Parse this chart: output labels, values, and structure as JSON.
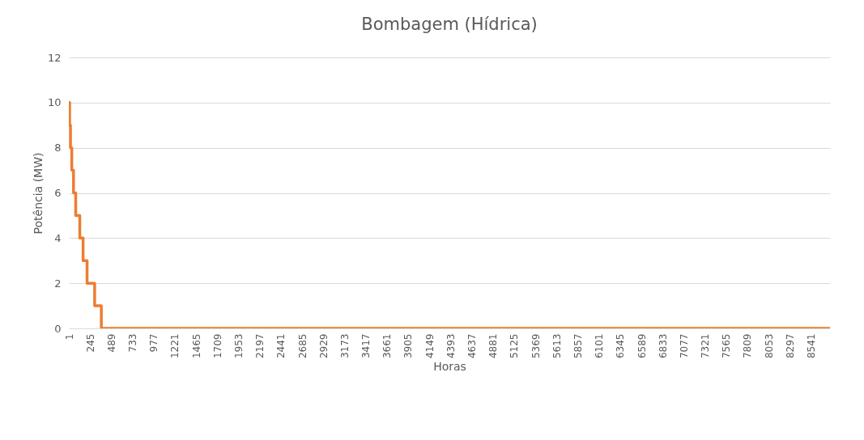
{
  "chart_data": {
    "type": "step",
    "title": "Bombagem (Hídrica)",
    "xlabel": "Horas",
    "ylabel": "Potência (MW)",
    "x": [
      1,
      10,
      20,
      35,
      55,
      80,
      127,
      165,
      211,
      298,
      375,
      8760
    ],
    "series": [
      {
        "color": "#ed7d31",
        "values": [
          10,
          9,
          8,
          7,
          6,
          5,
          4,
          3,
          2,
          1,
          0,
          0
        ]
      }
    ],
    "xlim": [
      1,
      8760
    ],
    "xticks": [
      1,
      245,
      489,
      733,
      977,
      1221,
      1465,
      1709,
      1953,
      2197,
      2441,
      2685,
      2929,
      3173,
      3417,
      3661,
      3905,
      4149,
      4393,
      4637,
      4881,
      5125,
      5369,
      5613,
      5857,
      6101,
      6345,
      6589,
      6833,
      7077,
      7321,
      7565,
      7809,
      8053,
      8297,
      8541
    ],
    "ylim": [
      0,
      12
    ],
    "yticks": [
      0,
      2,
      4,
      6,
      8,
      10,
      12
    ],
    "grid": "y",
    "legend": false
  }
}
